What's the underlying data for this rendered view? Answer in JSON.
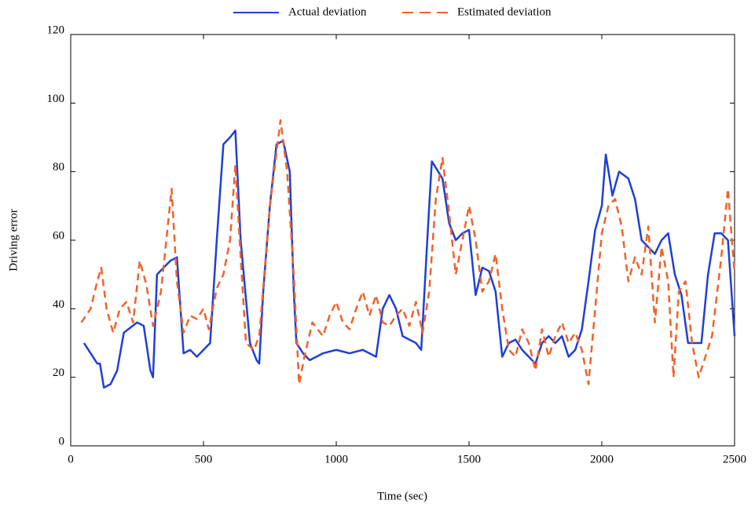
{
  "chart_data": {
    "type": "line",
    "xlabel": "Time (sec)",
    "ylabel": "Driving error",
    "xlim": [
      0,
      2500
    ],
    "xticks": [
      0,
      500,
      1000,
      1500,
      2000,
      2500
    ],
    "ylim": [
      0,
      120
    ],
    "yticks": [
      0,
      20,
      40,
      60,
      80,
      100,
      120
    ],
    "legend": "top",
    "series": [
      {
        "name": "Actual deviation",
        "color": "#1f3fd6",
        "dash": false,
        "x": [
          50,
          75,
          100,
          110,
          125,
          150,
          175,
          200,
          250,
          275,
          300,
          310,
          325,
          350,
          375,
          400,
          425,
          450,
          475,
          500,
          525,
          550,
          575,
          600,
          620,
          640,
          675,
          700,
          710,
          725,
          750,
          775,
          800,
          825,
          840,
          850,
          875,
          900,
          950,
          1000,
          1050,
          1100,
          1150,
          1175,
          1200,
          1225,
          1250,
          1300,
          1320,
          1350,
          1360,
          1400,
          1425,
          1450,
          1475,
          1500,
          1525,
          1550,
          1575,
          1600,
          1625,
          1650,
          1675,
          1700,
          1725,
          1750,
          1775,
          1800,
          1825,
          1850,
          1875,
          1900,
          1925,
          1950,
          1975,
          2000,
          2015,
          2040,
          2065,
          2100,
          2125,
          2150,
          2175,
          2200,
          2225,
          2250,
          2275,
          2300,
          2325,
          2350,
          2375,
          2400,
          2425,
          2450,
          2475,
          2500
        ],
        "values": [
          30,
          27,
          24,
          24,
          17,
          18,
          22,
          33,
          36,
          35,
          22,
          20,
          50,
          52,
          54,
          55,
          27,
          28,
          26,
          28,
          30,
          60,
          88,
          90,
          92,
          60,
          30,
          25,
          24,
          45,
          70,
          88,
          89,
          80,
          45,
          30,
          27,
          25,
          27,
          28,
          27,
          28,
          26,
          40,
          44,
          40,
          32,
          30,
          28,
          70,
          83,
          78,
          65,
          60,
          62,
          63,
          44,
          52,
          51,
          45,
          26,
          30,
          31,
          28,
          26,
          24,
          30,
          32,
          30,
          32,
          26,
          28,
          34,
          48,
          63,
          70,
          85,
          73,
          80,
          78,
          72,
          60,
          58,
          56,
          60,
          62,
          50,
          44,
          30,
          30,
          30,
          50,
          62,
          62,
          60,
          32
        ]
      },
      {
        "name": "Estimated deviation",
        "color": "#f0622a",
        "dash": true,
        "x": [
          40,
          75,
          100,
          115,
          135,
          160,
          185,
          210,
          235,
          260,
          285,
          310,
          340,
          380,
          400,
          425,
          450,
          475,
          500,
          520,
          550,
          575,
          600,
          620,
          640,
          660,
          690,
          710,
          750,
          790,
          815,
          840,
          860,
          880,
          910,
          950,
          975,
          1000,
          1025,
          1050,
          1075,
          1100,
          1125,
          1150,
          1175,
          1200,
          1225,
          1250,
          1275,
          1300,
          1325,
          1350,
          1375,
          1400,
          1425,
          1450,
          1475,
          1500,
          1525,
          1550,
          1575,
          1600,
          1625,
          1650,
          1675,
          1700,
          1725,
          1750,
          1775,
          1800,
          1825,
          1850,
          1875,
          1900,
          1925,
          1950,
          1975,
          2000,
          2025,
          2050,
          2075,
          2100,
          2125,
          2150,
          2175,
          2200,
          2225,
          2250,
          2270,
          2290,
          2315,
          2340,
          2365,
          2390,
          2415,
          2450,
          2475,
          2500
        ],
        "values": [
          36,
          40,
          48,
          52,
          40,
          33,
          40,
          42,
          36,
          54,
          47,
          35,
          45,
          75,
          48,
          33,
          38,
          37,
          40,
          34,
          46,
          50,
          60,
          82,
          55,
          30,
          28,
          32,
          70,
          95,
          80,
          50,
          18,
          26,
          36,
          32,
          38,
          42,
          36,
          34,
          40,
          45,
          38,
          44,
          36,
          35,
          38,
          40,
          35,
          42,
          33,
          45,
          72,
          84,
          68,
          50,
          60,
          70,
          60,
          45,
          48,
          56,
          40,
          28,
          26,
          34,
          30,
          22,
          34,
          26,
          32,
          36,
          30,
          33,
          28,
          18,
          40,
          62,
          70,
          72,
          64,
          48,
          55,
          50,
          64,
          36,
          58,
          48,
          20,
          45,
          48,
          30,
          20,
          26,
          32,
          55,
          75,
          50
        ]
      }
    ]
  }
}
